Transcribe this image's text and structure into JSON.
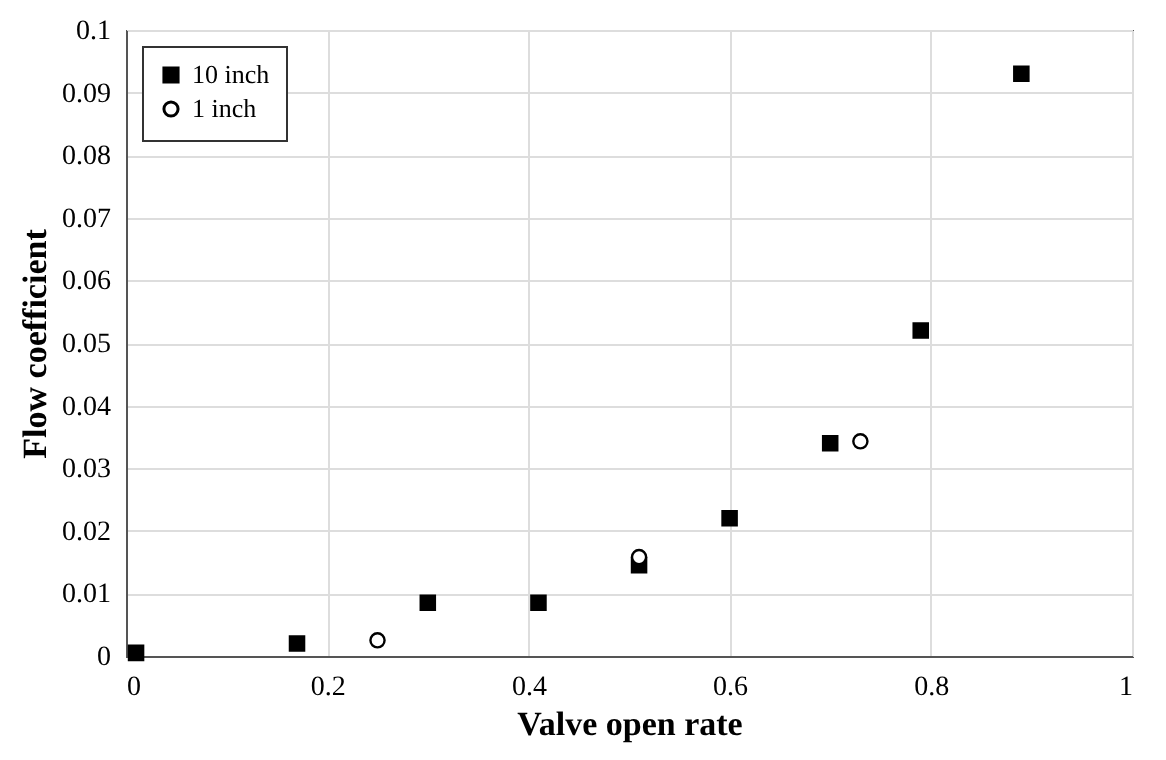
{
  "chart_data": {
    "type": "scatter",
    "xlabel": "Valve open rate",
    "ylabel": "Flow coefficient",
    "xlim": [
      0,
      1
    ],
    "xticks": [
      0,
      0.2,
      0.4,
      0.6,
      0.8,
      1
    ],
    "ylim": [
      0,
      0.1
    ],
    "yticks": [
      0,
      0.01,
      0.02,
      0.03,
      0.04,
      0.05,
      0.06,
      0.07,
      0.08,
      0.09,
      0.1
    ],
    "grid": true,
    "legend": "top left",
    "series": [
      {
        "name": "10 inch",
        "color": "#000000",
        "marker": "square",
        "x": [
          0.01,
          0.17,
          0.3,
          0.41,
          0.51,
          0.6,
          0.7,
          0.79,
          0.89
        ],
        "values": [
          0.0005,
          0.002,
          0.0085,
          0.0085,
          0.0145,
          0.022,
          0.034,
          0.052,
          0.093
        ]
      },
      {
        "name": "1 inch",
        "color": "#000000",
        "marker": "circle",
        "x": [
          0.25,
          0.51,
          0.73
        ],
        "values": [
          0.0025,
          0.0158,
          0.0343
        ]
      }
    ]
  }
}
